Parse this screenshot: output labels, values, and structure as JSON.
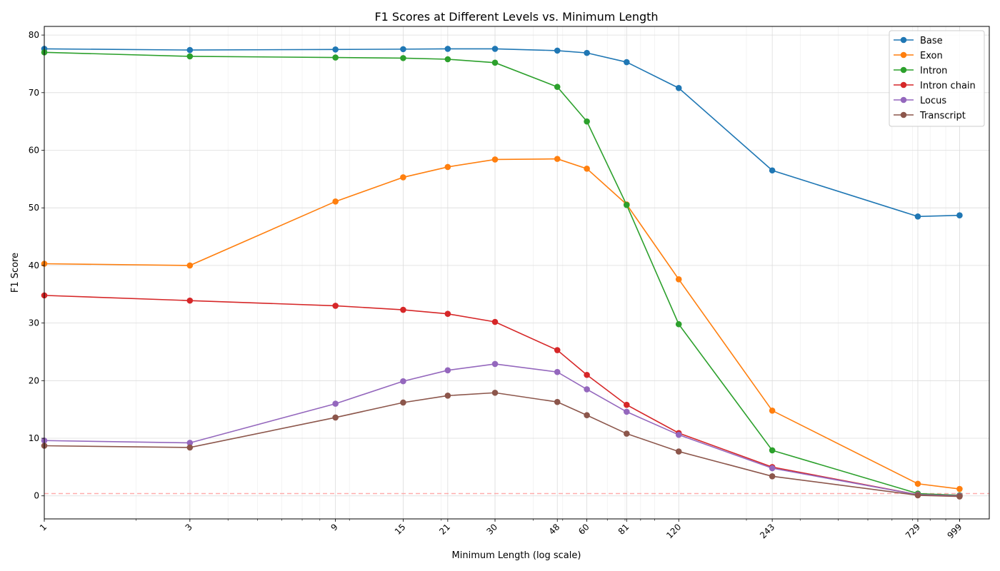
{
  "chart_data": {
    "type": "line",
    "title": "F1 Scores at Different Levels vs. Minimum Length",
    "xlabel": "Minimum Length (log scale)",
    "ylabel": "F1 Score",
    "x_scale": "log",
    "xlim": [
      1,
      1250
    ],
    "ylim": [
      -4,
      81.5
    ],
    "x": [
      1,
      3,
      9,
      15,
      21,
      30,
      48,
      60,
      81,
      120,
      243,
      729,
      999
    ],
    "x_tick_labels": [
      "1",
      "3",
      "9",
      "15",
      "21",
      "30",
      "48",
      "60",
      "81",
      "120",
      "243",
      "729",
      "999"
    ],
    "y_ticks": [
      0,
      10,
      20,
      30,
      40,
      50,
      60,
      70,
      80
    ],
    "y_tick_labels": [
      "0",
      "10",
      "20",
      "30",
      "40",
      "50",
      "60",
      "70",
      "80"
    ],
    "grid": true,
    "legend_position": "top-right",
    "reference_line": {
      "y": 0.4,
      "color": "#ff9999",
      "style": "dashed"
    },
    "series": [
      {
        "name": "Base",
        "color": "#1f77b4",
        "values": [
          77.6,
          77.4,
          77.5,
          77.55,
          77.6,
          77.6,
          77.3,
          76.9,
          75.3,
          70.8,
          56.5,
          48.5,
          48.7
        ]
      },
      {
        "name": "Exon",
        "color": "#ff7f0e",
        "values": [
          40.3,
          40.0,
          51.1,
          55.3,
          57.1,
          58.4,
          58.5,
          56.8,
          50.6,
          37.6,
          14.8,
          2.1,
          1.2
        ]
      },
      {
        "name": "Intron",
        "color": "#2ca02c",
        "values": [
          77.0,
          76.3,
          76.1,
          76.0,
          75.8,
          75.2,
          71.0,
          65.0,
          50.5,
          29.8,
          7.9,
          0.4,
          0.1
        ]
      },
      {
        "name": "Intron chain",
        "color": "#d62728",
        "values": [
          34.8,
          33.9,
          33.0,
          32.3,
          31.6,
          30.2,
          25.3,
          21.0,
          15.8,
          10.9,
          5.0,
          0.2,
          0.0
        ]
      },
      {
        "name": "Locus",
        "color": "#9467bd",
        "values": [
          9.6,
          9.2,
          16.0,
          19.9,
          21.8,
          22.9,
          21.5,
          18.5,
          14.6,
          10.6,
          4.8,
          0.2,
          0.0
        ]
      },
      {
        "name": "Transcript",
        "color": "#8c564b",
        "values": [
          8.7,
          8.4,
          13.6,
          16.2,
          17.4,
          17.9,
          16.3,
          14.0,
          10.8,
          7.7,
          3.4,
          0.1,
          -0.1
        ]
      }
    ]
  }
}
